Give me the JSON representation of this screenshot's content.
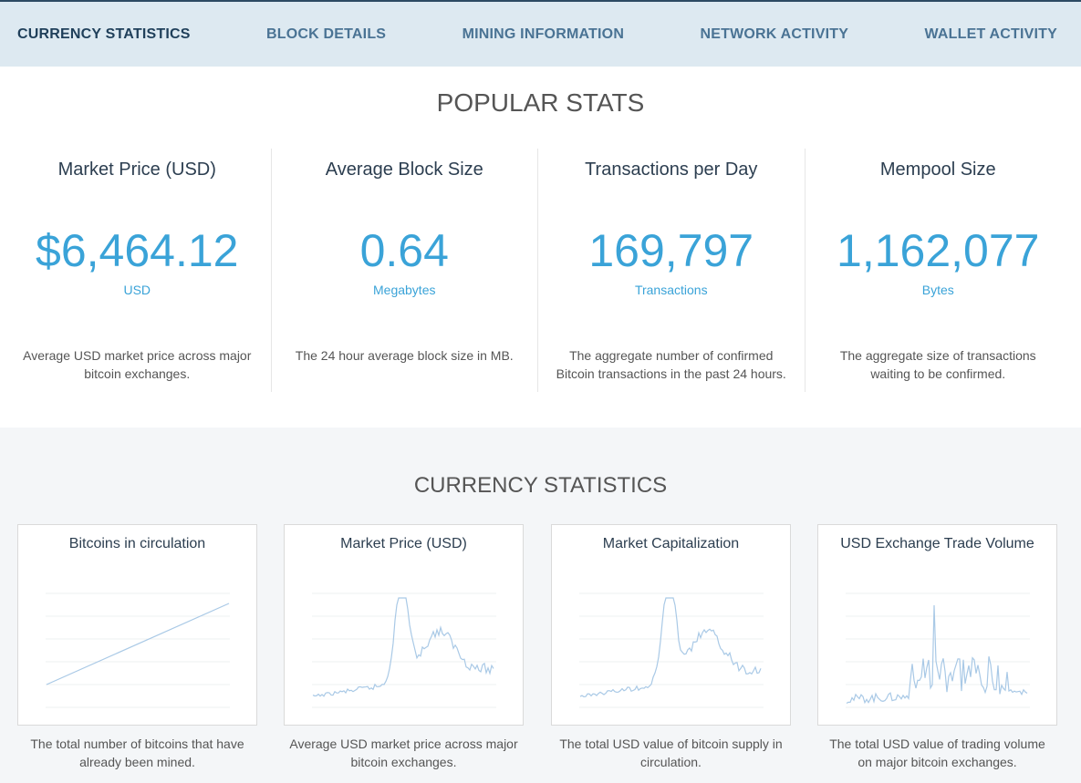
{
  "nav": {
    "items": [
      "CURRENCY STATISTICS",
      "BLOCK DETAILS",
      "MINING INFORMATION",
      "NETWORK ACTIVITY",
      "WALLET ACTIVITY"
    ]
  },
  "popular": {
    "title": "POPULAR STATS",
    "stats": [
      {
        "title": "Market Price (USD)",
        "value": "$6,464.12",
        "unit": "USD",
        "description": "Average USD market price across major bitcoin exchanges."
      },
      {
        "title": "Average Block Size",
        "value": "0.64",
        "unit": "Megabytes",
        "description": "The 24 hour average block size in MB."
      },
      {
        "title": "Transactions per Day",
        "value": "169,797",
        "unit": "Transactions",
        "description": "The aggregate number of confirmed Bitcoin transactions in the past 24 hours."
      },
      {
        "title": "Mempool Size",
        "value": "1,162,077",
        "unit": "Bytes",
        "description": "The aggregate size of transactions waiting to be confirmed."
      }
    ]
  },
  "currency": {
    "title": "CURRENCY STATISTICS",
    "cards": [
      {
        "title": "Bitcoins in circulation",
        "description": "The total number of bitcoins that have already been mined."
      },
      {
        "title": "Market Price (USD)",
        "description": "Average USD market price across major bitcoin exchanges."
      },
      {
        "title": "Market Capitalization",
        "description": "The total USD value of bitcoin supply in circulation."
      },
      {
        "title": "USD Exchange Trade Volume",
        "description": "The total USD value of trading volume on major bitcoin exchanges."
      }
    ]
  }
}
